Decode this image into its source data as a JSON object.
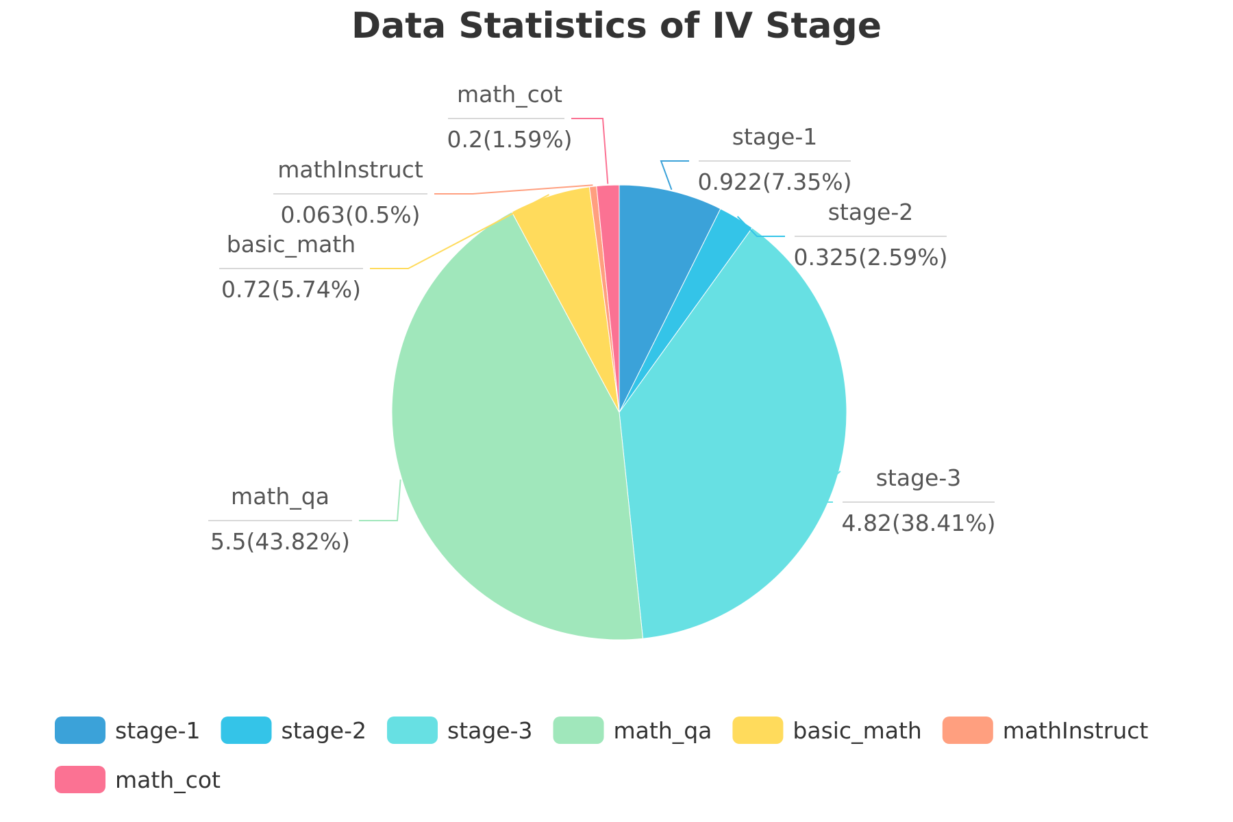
{
  "chart_data": {
    "type": "pie",
    "title": "Data Statistics of IV Stage",
    "legend_position": "bottom",
    "slices": [
      {
        "name": "stage-1",
        "value": 0.922,
        "value_label": "0.922",
        "percent": 7.35,
        "percent_label": "7.35%",
        "color": "#3ba2d9"
      },
      {
        "name": "stage-2",
        "value": 0.325,
        "value_label": "0.325",
        "percent": 2.59,
        "percent_label": "2.59%",
        "color": "#34c4e8"
      },
      {
        "name": "stage-3",
        "value": 4.82,
        "value_label": "4.82",
        "percent": 38.41,
        "percent_label": "38.41%",
        "color": "#67e0e3"
      },
      {
        "name": "math_qa",
        "value": 5.5,
        "value_label": "5.5",
        "percent": 43.82,
        "percent_label": "43.82%",
        "color": "#a0e7bb"
      },
      {
        "name": "basic_math",
        "value": 0.72,
        "value_label": "0.72",
        "percent": 5.74,
        "percent_label": "5.74%",
        "color": "#ffdb5c"
      },
      {
        "name": "mathInstruct",
        "value": 0.063,
        "value_label": "0.063",
        "percent": 0.5,
        "percent_label": "0.5%",
        "color": "#ff9f7f"
      },
      {
        "name": "math_cot",
        "value": 0.2,
        "value_label": "0.2",
        "percent": 1.59,
        "percent_label": "1.59%",
        "color": "#fb7293"
      }
    ]
  }
}
